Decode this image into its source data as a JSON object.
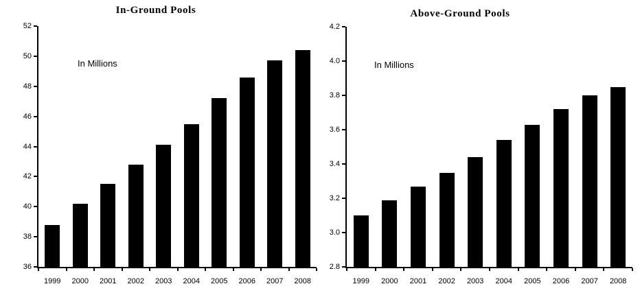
{
  "figure": {
    "background": "#ffffff",
    "bar_color": "#000000",
    "axis_color": "#000000",
    "text_color": "#000000"
  },
  "chart_data": [
    {
      "type": "bar",
      "title": "In-Ground Pools",
      "annotation": "In Millions",
      "categories": [
        "1999",
        "2000",
        "2001",
        "2002",
        "2003",
        "2004",
        "2005",
        "2006",
        "2007",
        "2008"
      ],
      "values": [
        38.8,
        40.2,
        41.5,
        42.8,
        44.1,
        45.5,
        47.2,
        48.6,
        49.7,
        50.4
      ],
      "xlabel": "",
      "ylabel": "",
      "ylim": [
        36,
        52
      ],
      "ytick_step": 2,
      "ytick_decimals": 0,
      "grid": false,
      "legend": null,
      "bar_color": "#000000"
    },
    {
      "type": "bar",
      "title": "Above-Ground Pools",
      "annotation": "In Millions",
      "categories": [
        "1999",
        "2000",
        "2001",
        "2002",
        "2003",
        "2004",
        "2005",
        "2006",
        "2007",
        "2008"
      ],
      "values": [
        3.1,
        3.19,
        3.27,
        3.35,
        3.44,
        3.54,
        3.63,
        3.72,
        3.8,
        3.85
      ],
      "xlabel": "",
      "ylabel": "",
      "ylim": [
        2.8,
        4.2
      ],
      "ytick_step": 0.2,
      "ytick_decimals": 1,
      "grid": false,
      "legend": null,
      "bar_color": "#000000"
    }
  ]
}
